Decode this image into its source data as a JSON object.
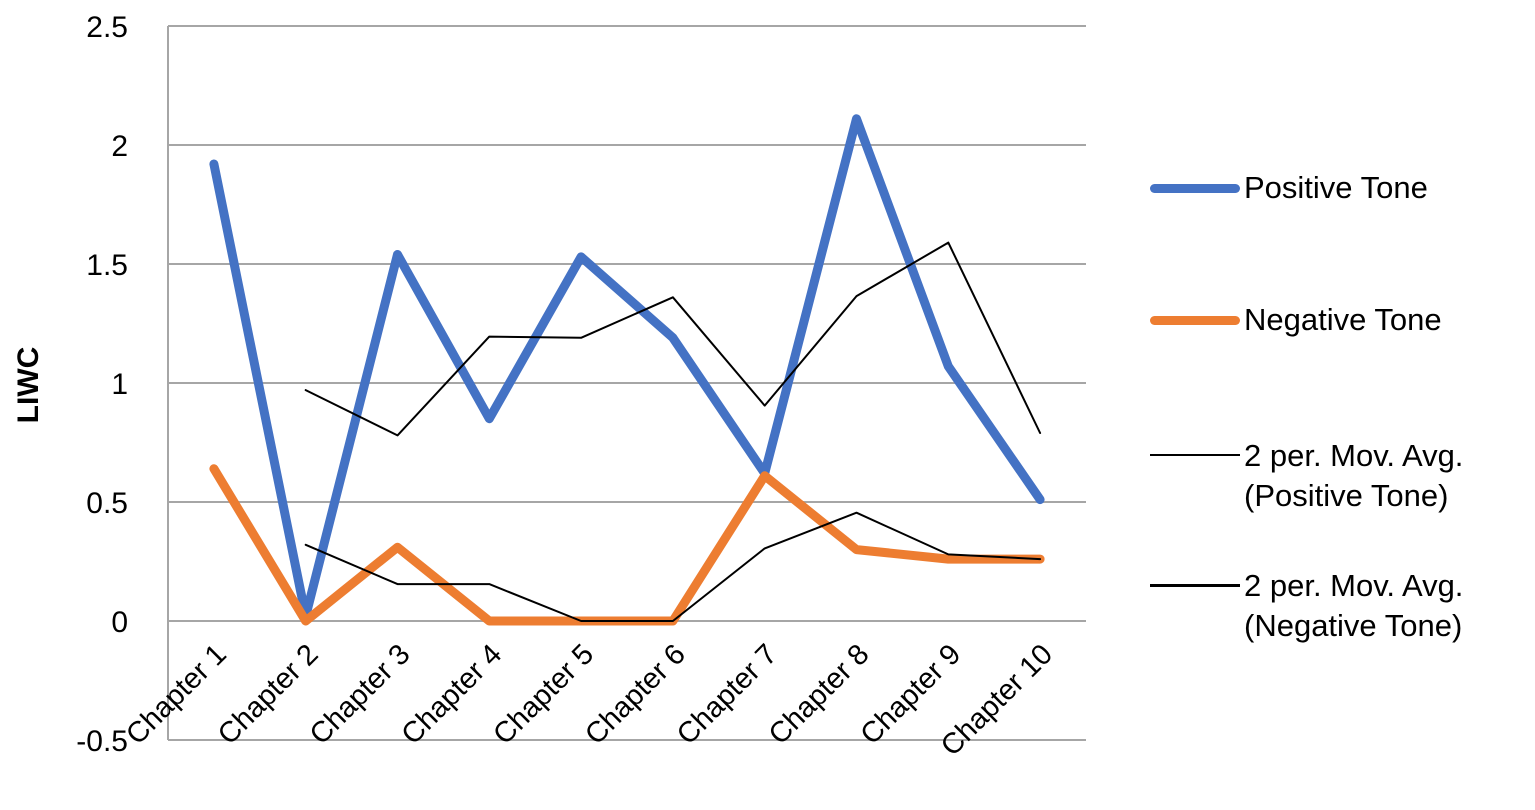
{
  "chart_data": {
    "type": "line",
    "title": "",
    "xlabel": "",
    "ylabel": "LIWC",
    "ylim": [
      -0.5,
      2.5
    ],
    "yticks": [
      2.5,
      2,
      1.5,
      1,
      0.5,
      0,
      -0.5
    ],
    "ytick_labels": [
      "2.5",
      "2",
      "1.5",
      "1",
      "0.5",
      "0",
      "-0.5"
    ],
    "grid": true,
    "legend_position": "right",
    "categories": [
      "Chapter 1",
      "Chapter 2",
      "Chapter 3",
      "Chapter 4",
      "Chapter 5",
      "Chapter 6",
      "Chapter 7",
      "Chapter 8",
      "Chapter 9",
      "Chapter 10"
    ],
    "series": [
      {
        "name": "Positive Tone",
        "color": "#4472C4",
        "width": 9,
        "values": [
          1.92,
          0.02,
          1.54,
          0.85,
          1.53,
          1.19,
          0.62,
          2.11,
          1.07,
          0.51
        ]
      },
      {
        "name": "Negative Tone",
        "color": "#ED7D31",
        "width": 9,
        "values": [
          0.64,
          0.0,
          0.31,
          0.0,
          0.0,
          0.0,
          0.61,
          0.3,
          0.26,
          0.26
        ]
      },
      {
        "name": "2 per. Mov. Avg. (Positive Tone)",
        "color": "#000000",
        "width": 2,
        "values": [
          null,
          0.97,
          0.78,
          1.195,
          1.19,
          1.36,
          0.905,
          1.365,
          1.59,
          0.79
        ]
      },
      {
        "name": "2 per. Mov. Avg. (Negative Tone)",
        "color": "#000000",
        "width": 2,
        "values": [
          null,
          0.32,
          0.155,
          0.155,
          0.0,
          0.0,
          0.305,
          0.455,
          0.28,
          0.26
        ]
      }
    ]
  },
  "legend": {
    "items": [
      {
        "label": "Positive Tone",
        "color": "#4472C4"
      },
      {
        "label": "Negative Tone",
        "color": "#ED7D31"
      },
      {
        "label": "2 per. Mov. Avg.\n(Positive Tone)",
        "color": "#000000"
      },
      {
        "label": "2 per. Mov. Avg.\n(Negative Tone)",
        "color": "#000000"
      }
    ]
  },
  "colors": {
    "gridline": "#A6A6A6",
    "axis": "#A6A6A6"
  }
}
